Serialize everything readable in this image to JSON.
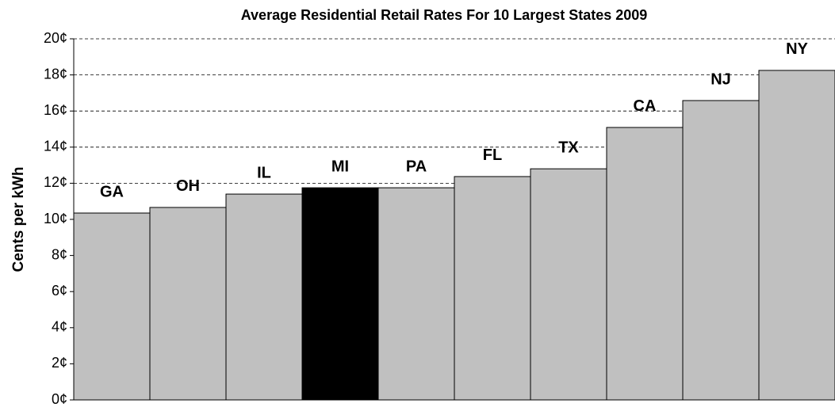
{
  "chart_data": {
    "type": "bar",
    "title": "Average Residential Retail Rates For 10 Largest States 2009",
    "y_label": "Cents per kWh",
    "categories": [
      "GA",
      "OH",
      "IL",
      "MI",
      "PA",
      "FL",
      "TX",
      "CA",
      "NJ",
      "NY"
    ],
    "values": [
      10.35,
      10.66,
      11.4,
      11.75,
      11.75,
      12.37,
      12.8,
      15.09,
      16.58,
      18.25
    ],
    "colors": [
      "#c0c0c0",
      "#c0c0c0",
      "#c0c0c0",
      "#000000",
      "#c0c0c0",
      "#c0c0c0",
      "#c0c0c0",
      "#c0c0c0",
      "#c0c0c0",
      "#c0c0c0"
    ],
    "ylim": [
      0,
      20
    ],
    "yticks": [
      {
        "value": 0,
        "label": "0¢"
      },
      {
        "value": 2,
        "label": "2¢"
      },
      {
        "value": 4,
        "label": "4¢"
      },
      {
        "value": 6,
        "label": "6¢"
      },
      {
        "value": 8,
        "label": "8¢"
      },
      {
        "value": 10,
        "label": "10¢"
      },
      {
        "value": 12,
        "label": "12¢"
      },
      {
        "value": 14,
        "label": "14¢"
      },
      {
        "value": 16,
        "label": "16¢"
      },
      {
        "value": 18,
        "label": "18¢"
      },
      {
        "value": 20,
        "label": "20¢"
      }
    ],
    "grid": true
  }
}
